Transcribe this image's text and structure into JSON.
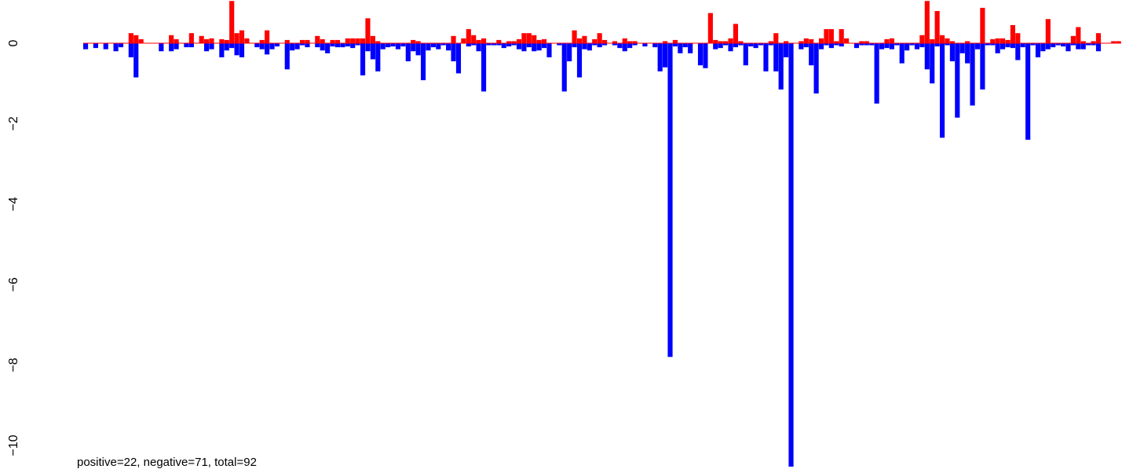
{
  "chart_data": {
    "type": "bar",
    "title": "",
    "xlabel": "",
    "ylabel": "",
    "ylim": [
      -10.7,
      1.05
    ],
    "yticks": [
      0,
      -2,
      -4,
      -6,
      -8,
      -10
    ],
    "ytick_labels": [
      "0",
      "−2",
      "−4",
      "−6",
      "−8",
      "−10"
    ],
    "bars_per_row": 2,
    "colors": {
      "positive": "#ff0000",
      "negative": "#0000ff",
      "baseline": "#ff0000"
    },
    "series": [
      {
        "name": "positive",
        "values": [
          0,
          0,
          0,
          0,
          0,
          0,
          0,
          0,
          0,
          0.25,
          0.2,
          0.1,
          0,
          0,
          0,
          0,
          0,
          0.2,
          0.1,
          0,
          0,
          0.25,
          0,
          0.18,
          0.1,
          0.12,
          0,
          0.1,
          0.08,
          1.05,
          0.25,
          0.32,
          0.12,
          0,
          0,
          0.08,
          0.32,
          0,
          0,
          0,
          0.08,
          0,
          0,
          0.08,
          0.08,
          0,
          0.18,
          0.1,
          0,
          0.08,
          0.08,
          0,
          0.12,
          0.12,
          0.12,
          0.12,
          0.62,
          0.18,
          0.05,
          0,
          0,
          0,
          0,
          0,
          0,
          0.08,
          0.05,
          0,
          0,
          0,
          0,
          0,
          0,
          0.18,
          0,
          0.12,
          0.35,
          0.2,
          0.08,
          0.12,
          0,
          0,
          0.08,
          0,
          0.05,
          0.05,
          0.1,
          0.25,
          0.25,
          0.2,
          0.08,
          0.1,
          0,
          0,
          0,
          0,
          0,
          0.32,
          0.12,
          0.18,
          0,
          0.1,
          0.25,
          0.08,
          0,
          0.05,
          0,
          0.12,
          0.05,
          0.05,
          0,
          0,
          0,
          0,
          0,
          0.05,
          0,
          0.08,
          0,
          0,
          0,
          0,
          0,
          0,
          0.75,
          0.08,
          0.05,
          0.05,
          0.12,
          0.48,
          0.05,
          0,
          0,
          0,
          0,
          0,
          0.05,
          0.25,
          0,
          0.05,
          0,
          0,
          0.05,
          0.12,
          0.1,
          0,
          0.12,
          0.35,
          0.35,
          0.05,
          0.35,
          0.12,
          0,
          0,
          0.05,
          0.05,
          0,
          0,
          0,
          0.1,
          0.12,
          0,
          0,
          0,
          0,
          0,
          0.2,
          1.05,
          0.1,
          0.8,
          0.2,
          0.12,
          0.05,
          0,
          0,
          0.05,
          0,
          0,
          0.88,
          0,
          0.1,
          0.12,
          0.12,
          0.08,
          0.45,
          0.25,
          0,
          0,
          0,
          0,
          0,
          0.6,
          0,
          0,
          0,
          0,
          0.18,
          0.4,
          0.05,
          0,
          0.05,
          0.25,
          0,
          0,
          0.05,
          0.05
        ]
      },
      {
        "name": "negative",
        "values": [
          -0.15,
          0,
          -0.12,
          0,
          -0.15,
          0,
          -0.2,
          -0.1,
          0,
          -0.35,
          -0.85,
          0,
          0,
          0,
          0,
          -0.2,
          0,
          -0.2,
          -0.15,
          0,
          -0.1,
          -0.1,
          0,
          0,
          -0.2,
          -0.15,
          0,
          -0.35,
          -0.18,
          -0.12,
          -0.3,
          -0.35,
          0,
          0,
          -0.1,
          -0.15,
          -0.28,
          -0.15,
          -0.08,
          0,
          -0.65,
          -0.18,
          -0.15,
          -0.05,
          -0.1,
          0,
          -0.1,
          -0.18,
          -0.25,
          -0.08,
          -0.1,
          -0.1,
          -0.08,
          -0.12,
          -0.05,
          -0.8,
          -0.2,
          -0.4,
          -0.7,
          -0.15,
          -0.1,
          -0.08,
          -0.15,
          -0.08,
          -0.45,
          -0.2,
          -0.3,
          -0.92,
          -0.18,
          -0.1,
          -0.15,
          -0.05,
          -0.18,
          -0.45,
          -0.75,
          0,
          -0.08,
          -0.05,
          -0.2,
          -1.2,
          -0.05,
          -0.05,
          -0.05,
          -0.12,
          -0.08,
          -0.05,
          -0.15,
          -0.2,
          -0.1,
          -0.2,
          -0.18,
          -0.12,
          -0.35,
          0,
          -0.05,
          -1.2,
          -0.45,
          -0.1,
          -0.85,
          -0.15,
          -0.18,
          -0.05,
          -0.1,
          -0.05,
          0,
          -0.05,
          -0.12,
          -0.2,
          -0.12,
          -0.05,
          0,
          -0.08,
          0,
          -0.1,
          -0.7,
          -0.6,
          -7.8,
          -0.08,
          -0.25,
          -0.1,
          -0.25,
          0,
          -0.55,
          -0.62,
          0,
          -0.15,
          -0.12,
          -0.05,
          -0.2,
          -0.1,
          -0.05,
          -0.55,
          -0.08,
          -0.12,
          -0.05,
          -0.7,
          -0.05,
          -0.7,
          -1.15,
          -0.35,
          -10.7,
          0,
          -0.15,
          -0.1,
          -0.55,
          -1.25,
          -0.15,
          -0.05,
          -0.12,
          -0.05,
          -0.08,
          0,
          0,
          -0.12,
          -0.05,
          -0.05,
          -0.05,
          -1.5,
          -0.15,
          -0.12,
          -0.15,
          -0.05,
          -0.5,
          -0.18,
          -0.05,
          -0.15,
          -0.1,
          -0.65,
          -1.0,
          -0.08,
          -2.35,
          -0.05,
          -0.45,
          -1.85,
          -0.25,
          -0.5,
          -1.55,
          -0.15,
          -1.15,
          -0.05,
          -0.05,
          -0.25,
          -0.15,
          -0.1,
          -0.12,
          -0.42,
          -0.1,
          -2.4,
          -0.05,
          -0.35,
          -0.2,
          -0.15,
          -0.1,
          -0.05,
          -0.08,
          -0.2,
          -0.05,
          -0.15,
          -0.15,
          -0.05,
          -0.05,
          -0.2
        ]
      }
    ],
    "annotation": "positive=22, negative=71, total=92"
  }
}
